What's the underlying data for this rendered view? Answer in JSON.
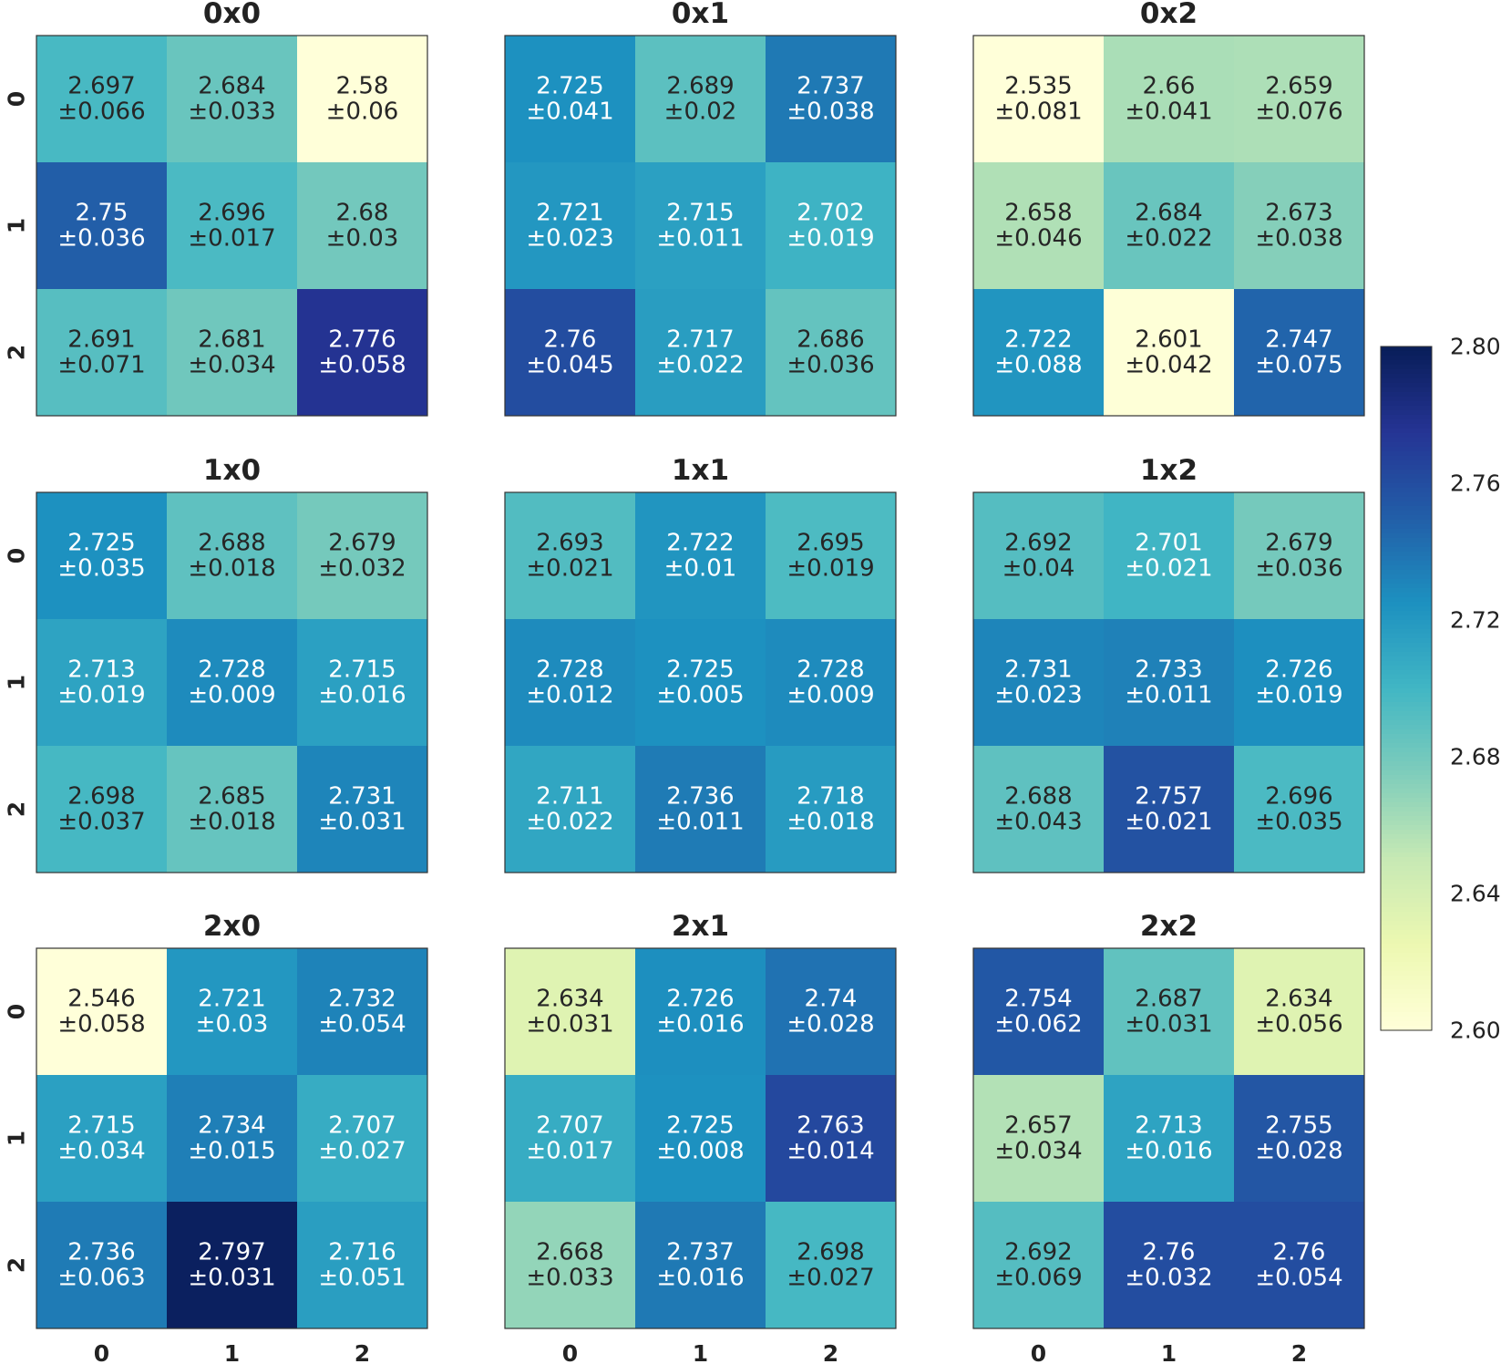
{
  "chart_data": {
    "type": "heatmap",
    "row_tick_labels": [
      "0",
      "1",
      "2"
    ],
    "col_tick_labels": [
      "0",
      "1",
      "2"
    ],
    "colormap": "YlGnBu",
    "colorbar": {
      "range": [
        2.6,
        2.8
      ],
      "ticks": [
        "2.60",
        "2.64",
        "2.68",
        "2.72",
        "2.76",
        "2.80"
      ],
      "placement": "right"
    },
    "panels": [
      {
        "title": "0x0",
        "values": [
          [
            2.697,
            2.684,
            2.58
          ],
          [
            2.75,
            2.696,
            2.68
          ],
          [
            2.691,
            2.681,
            2.776
          ]
        ],
        "errors": [
          [
            "±0.066",
            "±0.033",
            "±0.06"
          ],
          [
            "±0.036",
            "±0.017",
            "±0.03"
          ],
          [
            "±0.071",
            "±0.034",
            "±0.058"
          ]
        ]
      },
      {
        "title": "0x1",
        "values": [
          [
            2.725,
            2.689,
            2.737
          ],
          [
            2.721,
            2.715,
            2.702
          ],
          [
            2.76,
            2.717,
            2.686
          ]
        ],
        "errors": [
          [
            "±0.041",
            "±0.02",
            "±0.038"
          ],
          [
            "±0.023",
            "±0.011",
            "±0.019"
          ],
          [
            "±0.045",
            "±0.022",
            "±0.036"
          ]
        ]
      },
      {
        "title": "0x2",
        "values": [
          [
            2.535,
            2.66,
            2.659
          ],
          [
            2.658,
            2.684,
            2.673
          ],
          [
            2.722,
            2.601,
            2.747
          ]
        ],
        "errors": [
          [
            "±0.081",
            "±0.041",
            "±0.076"
          ],
          [
            "±0.046",
            "±0.022",
            "±0.038"
          ],
          [
            "±0.088",
            "±0.042",
            "±0.075"
          ]
        ]
      },
      {
        "title": "1x0",
        "values": [
          [
            2.725,
            2.688,
            2.679
          ],
          [
            2.713,
            2.728,
            2.715
          ],
          [
            2.698,
            2.685,
            2.731
          ]
        ],
        "errors": [
          [
            "±0.035",
            "±0.018",
            "±0.032"
          ],
          [
            "±0.019",
            "±0.009",
            "±0.016"
          ],
          [
            "±0.037",
            "±0.018",
            "±0.031"
          ]
        ]
      },
      {
        "title": "1x1",
        "values": [
          [
            2.693,
            2.722,
            2.695
          ],
          [
            2.728,
            2.725,
            2.728
          ],
          [
            2.711,
            2.736,
            2.718
          ]
        ],
        "errors": [
          [
            "±0.021",
            "±0.01",
            "±0.019"
          ],
          [
            "±0.012",
            "±0.005",
            "±0.009"
          ],
          [
            "±0.022",
            "±0.011",
            "±0.018"
          ]
        ]
      },
      {
        "title": "1x2",
        "values": [
          [
            2.692,
            2.701,
            2.679
          ],
          [
            2.731,
            2.733,
            2.726
          ],
          [
            2.688,
            2.757,
            2.696
          ]
        ],
        "errors": [
          [
            "±0.04",
            "±0.021",
            "±0.036"
          ],
          [
            "±0.023",
            "±0.011",
            "±0.019"
          ],
          [
            "±0.043",
            "±0.021",
            "±0.035"
          ]
        ]
      },
      {
        "title": "2x0",
        "values": [
          [
            2.546,
            2.721,
            2.732
          ],
          [
            2.715,
            2.734,
            2.707
          ],
          [
            2.736,
            2.797,
            2.716
          ]
        ],
        "errors": [
          [
            "±0.058",
            "±0.03",
            "±0.054"
          ],
          [
            "±0.034",
            "±0.015",
            "±0.027"
          ],
          [
            "±0.063",
            "±0.031",
            "±0.051"
          ]
        ]
      },
      {
        "title": "2x1",
        "values": [
          [
            2.634,
            2.726,
            2.74
          ],
          [
            2.707,
            2.725,
            2.763
          ],
          [
            2.668,
            2.737,
            2.698
          ]
        ],
        "errors": [
          [
            "±0.031",
            "±0.016",
            "±0.028"
          ],
          [
            "±0.017",
            "±0.008",
            "±0.014"
          ],
          [
            "±0.033",
            "±0.016",
            "±0.027"
          ]
        ]
      },
      {
        "title": "2x2",
        "values": [
          [
            2.754,
            2.687,
            2.634
          ],
          [
            2.657,
            2.713,
            2.755
          ],
          [
            2.692,
            2.76,
            2.76
          ]
        ],
        "errors": [
          [
            "±0.062",
            "±0.031",
            "±0.056"
          ],
          [
            "±0.034",
            "±0.016",
            "±0.028"
          ],
          [
            "±0.069",
            "±0.032",
            "±0.054"
          ]
        ]
      }
    ]
  }
}
